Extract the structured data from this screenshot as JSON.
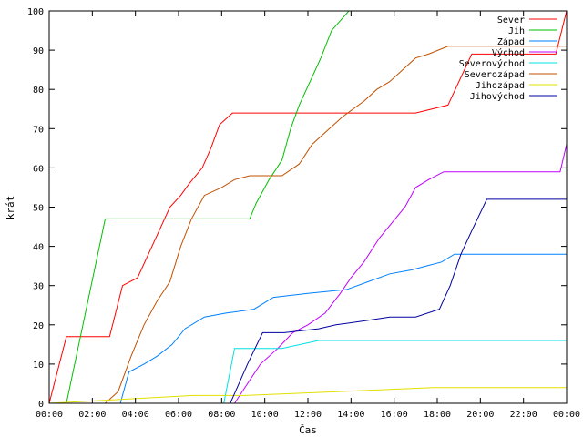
{
  "chart_data": {
    "type": "line",
    "title": "",
    "xlabel": "Čas",
    "ylabel": "krát",
    "xlim": [
      0,
      24
    ],
    "ylim": [
      0,
      100
    ],
    "x_ticks": [
      0,
      2,
      4,
      6,
      8,
      10,
      12,
      14,
      16,
      18,
      20,
      22,
      24
    ],
    "x_tick_labels": [
      "00:00",
      "02:00",
      "04:00",
      "06:00",
      "08:00",
      "10:00",
      "12:00",
      "14:00",
      "16:00",
      "18:00",
      "20:00",
      "22:00",
      "00:00"
    ],
    "y_ticks": [
      0,
      10,
      20,
      30,
      40,
      50,
      60,
      70,
      80,
      90,
      100
    ],
    "y_tick_labels": [
      "0",
      "10",
      "20",
      "30",
      "40",
      "50",
      "60",
      "70",
      "80",
      "90",
      "100"
    ],
    "grid": false,
    "legend_position": "top-right",
    "series": [
      {
        "name": "Sever",
        "color": "#ff0000",
        "x": [
          0,
          0.8,
          2.8,
          3.4,
          4.1,
          4.6,
          5.1,
          5.6,
          6.1,
          6.5,
          7.1,
          7.5,
          7.9,
          8.5,
          9.5,
          12,
          15,
          17,
          18.5,
          19.6,
          23.5,
          24
        ],
        "y": [
          0,
          17,
          17,
          30,
          32,
          38,
          44,
          50,
          53,
          56,
          60,
          65,
          71,
          74,
          74,
          74,
          74,
          74,
          76,
          89,
          89,
          100
        ]
      },
      {
        "name": "Jih",
        "color": "#00c000",
        "x": [
          0,
          0.8,
          2.6,
          9.3,
          9.6,
          10.2,
          10.8,
          11.2,
          11.6,
          12.1,
          12.6,
          13.1,
          13.9,
          24
        ],
        "y": [
          0,
          0,
          47,
          47,
          51,
          57,
          62,
          70,
          76,
          82,
          88,
          95,
          100,
          100
        ]
      },
      {
        "name": "Západ",
        "color": "#0080ff",
        "x": [
          0,
          3.3,
          3.7,
          4.4,
          5.0,
          5.7,
          6.3,
          7.2,
          8.2,
          9.5,
          10.4,
          12.0,
          13.8,
          14.8,
          15.8,
          16.8,
          17.5,
          18.2,
          18.8,
          24
        ],
        "y": [
          0,
          0,
          8,
          10,
          12,
          15,
          19,
          22,
          23,
          24,
          27,
          28,
          29,
          31,
          33,
          34,
          35,
          36,
          38,
          38
        ]
      },
      {
        "name": "Východ",
        "color": "#c000ff",
        "x": [
          0,
          8.6,
          9.2,
          9.8,
          10.6,
          11.3,
          12.0,
          12.8,
          13.5,
          14.0,
          14.6,
          15.3,
          15.9,
          16.5,
          17.0,
          17.6,
          18.3,
          19.5,
          23.7,
          24
        ],
        "y": [
          0,
          0,
          5,
          10,
          14,
          18,
          20,
          23,
          28,
          32,
          36,
          42,
          46,
          50,
          55,
          57,
          59,
          59,
          59,
          66
        ]
      },
      {
        "name": "Severovýchod",
        "color": "#00e0e0",
        "x": [
          0,
          8.1,
          8.6,
          10.8,
          12.5,
          17.9,
          24
        ],
        "y": [
          0,
          0,
          14,
          14,
          16,
          16,
          16
        ]
      },
      {
        "name": "Severozápad",
        "color": "#c05000",
        "x": [
          0,
          2.6,
          3.2,
          3.8,
          4.4,
          5.0,
          5.6,
          6.1,
          6.6,
          7.2,
          8.0,
          8.6,
          9.3,
          10.8,
          11.6,
          12.2,
          13.0,
          13.6,
          14.6,
          15.2,
          15.8,
          16.6,
          17.0,
          17.6,
          18.5,
          24
        ],
        "y": [
          0,
          0,
          3,
          12,
          20,
          26,
          31,
          40,
          47,
          53,
          55,
          57,
          58,
          58,
          61,
          66,
          70,
          73,
          77,
          80,
          82,
          86,
          88,
          89,
          91,
          91
        ]
      },
      {
        "name": "Jihozápad",
        "color": "#e0e000",
        "x": [
          0,
          6.7,
          9.1,
          17.8,
          24
        ],
        "y": [
          0,
          2,
          2,
          4,
          4
        ]
      },
      {
        "name": "Jihovýchod",
        "color": "#0000a0",
        "x": [
          0,
          8.4,
          9.2,
          9.9,
          10.9,
          12.5,
          13.3,
          14.6,
          15.8,
          17.0,
          18.1,
          18.6,
          19.1,
          19.6,
          20.3,
          24
        ],
        "y": [
          0,
          0,
          10,
          18,
          18,
          19,
          20,
          21,
          22,
          22,
          24,
          30,
          38,
          44,
          52,
          52
        ]
      }
    ]
  }
}
